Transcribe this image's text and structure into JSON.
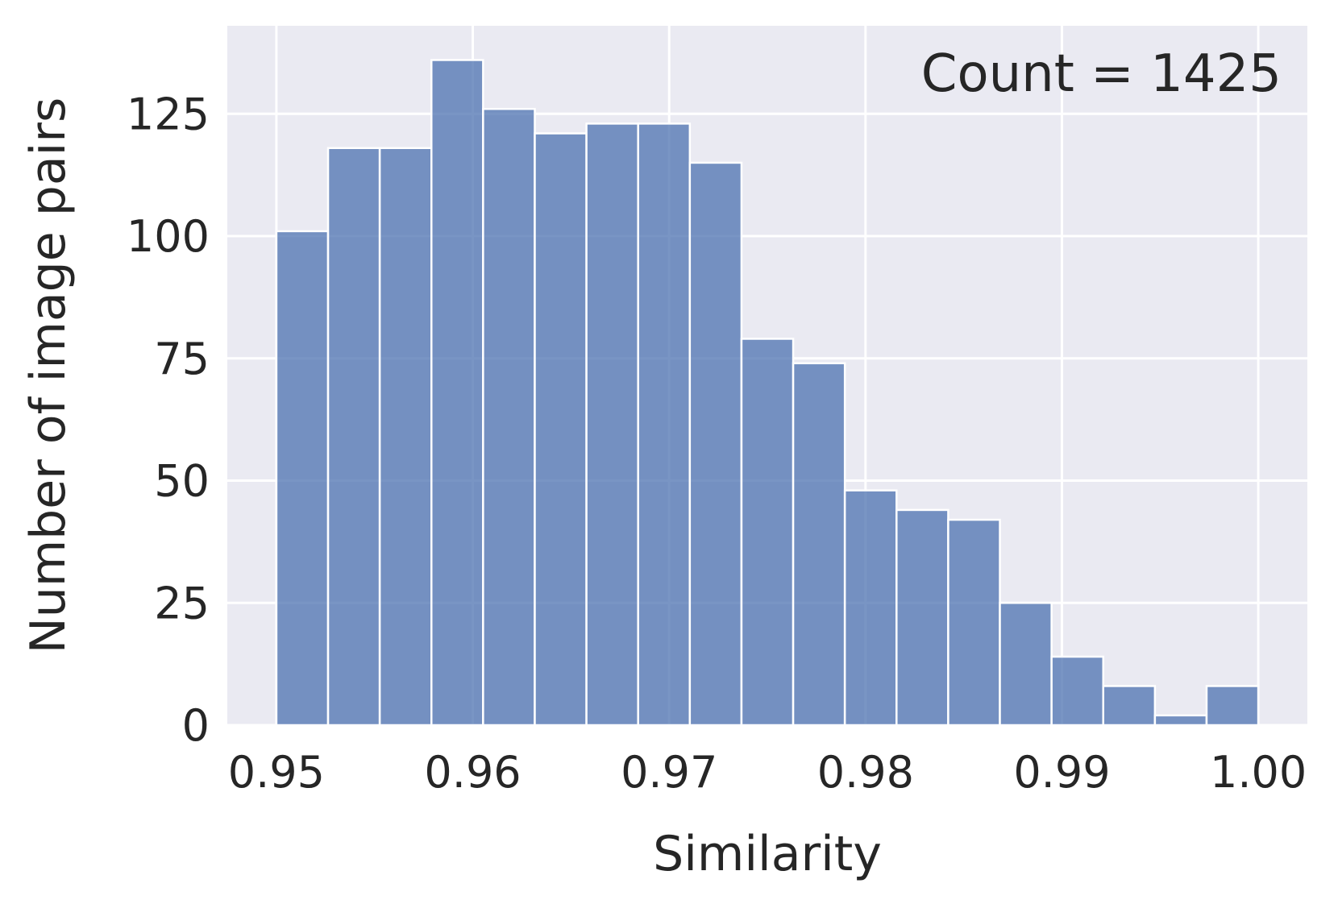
{
  "chart_data": {
    "type": "bar",
    "title": "",
    "xlabel": "Similarity",
    "ylabel": "Number of image pairs",
    "annotation": "Count = 1425",
    "xlim": [
      0.9475,
      1.0025
    ],
    "ylim": [
      0,
      143
    ],
    "x_ticks": [
      0.95,
      0.96,
      0.97,
      0.98,
      0.99,
      1.0
    ],
    "x_tick_labels": [
      "0.95",
      "0.96",
      "0.97",
      "0.98",
      "0.99",
      "1.00"
    ],
    "y_ticks": [
      0,
      25,
      50,
      75,
      100,
      125
    ],
    "y_tick_labels": [
      "0",
      "25",
      "50",
      "75",
      "100",
      "125"
    ],
    "grid": true,
    "colors": {
      "background": "#eaeaf2",
      "bar": "#4c72b0",
      "grid": "#ffffff",
      "text": "#262626"
    },
    "bin_edges": [
      0.95,
      0.952632,
      0.955263,
      0.957895,
      0.960526,
      0.963158,
      0.965789,
      0.968421,
      0.971053,
      0.973684,
      0.976316,
      0.978947,
      0.981579,
      0.984211,
      0.986842,
      0.989474,
      0.992105,
      0.994737,
      0.997368,
      1.0
    ],
    "values": [
      101,
      118,
      118,
      136,
      126,
      121,
      123,
      123,
      115,
      79,
      74,
      48,
      44,
      42,
      25,
      14,
      8,
      2,
      8
    ]
  }
}
